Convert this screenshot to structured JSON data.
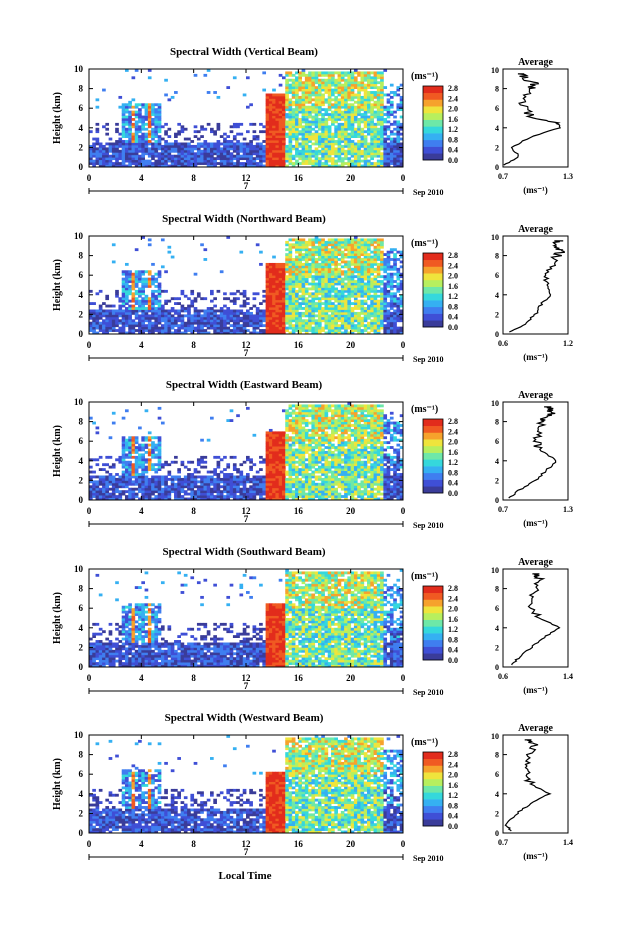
{
  "figure": {
    "xlabel": "Local Time",
    "date_label": "Sep 2010",
    "day_label": "7",
    "ylabel": "Height (km)",
    "colorbar_unit": "(ms⁻¹)",
    "avg_title": "Average",
    "avg_xlabel": "(ms⁻¹)",
    "x_ticks": [
      "0",
      "4",
      "8",
      "12",
      "16",
      "20",
      "0"
    ],
    "y_ticks": [
      "0",
      "2",
      "4",
      "6",
      "8",
      "10"
    ],
    "colorbar_ticks": [
      "0.0",
      "0.4",
      "0.8",
      "1.2",
      "1.6",
      "2.0",
      "2.4",
      "2.8"
    ],
    "colorbar_colors": [
      "#3a3c9a",
      "#3f4fd6",
      "#3f7ef0",
      "#35b0f2",
      "#35d8dc",
      "#6ee8a8",
      "#b7ef5e",
      "#efe43c",
      "#f6a22c",
      "#f05a22",
      "#e22c1c"
    ]
  },
  "chart_data": [
    {
      "type": "heatmap",
      "title": "Spectral Width (Vertical Beam)",
      "xlabel": "Local Time",
      "ylabel": "Height (km)",
      "xlim": [
        0,
        24
      ],
      "ylim": [
        0,
        10
      ],
      "color_range": [
        0,
        2.8
      ],
      "x_ticks": [
        0,
        4,
        8,
        12,
        16,
        20,
        24
      ],
      "average": {
        "title": "Average",
        "xlabel": "(ms⁻¹)",
        "xlim": [
          0.7,
          1.3
        ],
        "x_tick_labels": [
          "0.7",
          "1.3"
        ],
        "height": [
          0.2,
          1,
          2,
          3,
          4,
          4.5,
          5,
          6,
          7,
          8,
          8.5,
          9,
          9.5
        ],
        "value": [
          0.72,
          0.85,
          0.78,
          0.95,
          1.22,
          1.2,
          0.98,
          0.9,
          0.88,
          0.95,
          1.0,
          0.9,
          0.88
        ]
      }
    },
    {
      "type": "heatmap",
      "title": "Spectral Width (Northward Beam)",
      "xlabel": "Local Time",
      "ylabel": "Height (km)",
      "xlim": [
        0,
        24
      ],
      "ylim": [
        0,
        10
      ],
      "color_range": [
        0,
        2.8
      ],
      "x_ticks": [
        0,
        4,
        8,
        12,
        16,
        20,
        24
      ],
      "average": {
        "title": "Average",
        "xlabel": "(ms⁻¹)",
        "xlim": [
          0.6,
          1.2
        ],
        "x_tick_labels": [
          "0.6",
          "1.2"
        ],
        "height": [
          0.2,
          1,
          2,
          3,
          4,
          5,
          6,
          7,
          8,
          8.5,
          9,
          9.5
        ],
        "value": [
          0.65,
          0.8,
          0.9,
          0.95,
          1.05,
          1.0,
          1.02,
          1.05,
          1.1,
          1.15,
          1.08,
          1.12
        ]
      }
    },
    {
      "type": "heatmap",
      "title": "Spectral Width (Eastward Beam)",
      "xlabel": "Local Time",
      "ylabel": "Height (km)",
      "xlim": [
        0,
        24
      ],
      "ylim": [
        0,
        10
      ],
      "color_range": [
        0,
        2.8
      ],
      "x_ticks": [
        0,
        4,
        8,
        12,
        16,
        20,
        24
      ],
      "average": {
        "title": "Average",
        "xlabel": "(ms⁻¹)",
        "xlim": [
          0.7,
          1.3
        ],
        "x_tick_labels": [
          "0.7",
          "1.3"
        ],
        "height": [
          0.2,
          1,
          2,
          3,
          4,
          5,
          6,
          7,
          8,
          8.5,
          9,
          9.5
        ],
        "value": [
          0.75,
          0.85,
          1.0,
          1.1,
          1.2,
          1.05,
          1.0,
          1.02,
          1.05,
          1.12,
          1.15,
          1.1
        ]
      }
    },
    {
      "type": "heatmap",
      "title": "Spectral Width (Southward Beam)",
      "xlabel": "Local Time",
      "ylabel": "Height (km)",
      "xlim": [
        0,
        24
      ],
      "ylim": [
        0,
        10
      ],
      "color_range": [
        0,
        2.8
      ],
      "x_ticks": [
        0,
        4,
        8,
        12,
        16,
        20,
        24
      ],
      "average": {
        "title": "Average",
        "xlabel": "(ms⁻¹)",
        "xlim": [
          0.6,
          1.4
        ],
        "x_tick_labels": [
          "0.6",
          "1.4"
        ],
        "height": [
          0.2,
          1,
          2,
          3,
          4,
          5,
          6,
          7,
          8,
          9,
          9.5
        ],
        "value": [
          0.7,
          0.8,
          0.95,
          1.1,
          1.3,
          1.05,
          0.95,
          0.95,
          1.0,
          1.05,
          1.0
        ]
      }
    },
    {
      "type": "heatmap",
      "title": "Spectral Width (Westward Beam)",
      "xlabel": "Local Time",
      "ylabel": "Height (km)",
      "xlim": [
        0,
        24
      ],
      "ylim": [
        0,
        10
      ],
      "color_range": [
        0,
        2.8
      ],
      "x_ticks": [
        0,
        4,
        8,
        12,
        16,
        20,
        24
      ],
      "average": {
        "title": "Average",
        "xlabel": "(ms⁻¹)",
        "xlim": [
          0.7,
          1.4
        ],
        "x_tick_labels": [
          "0.7",
          "1.4"
        ],
        "height": [
          0.2,
          0.8,
          2,
          3,
          4,
          5,
          6,
          7,
          8,
          9,
          9.5
        ],
        "value": [
          0.8,
          0.72,
          0.85,
          1.0,
          1.2,
          1.0,
          0.95,
          0.98,
          1.0,
          1.05,
          0.98
        ]
      }
    }
  ]
}
